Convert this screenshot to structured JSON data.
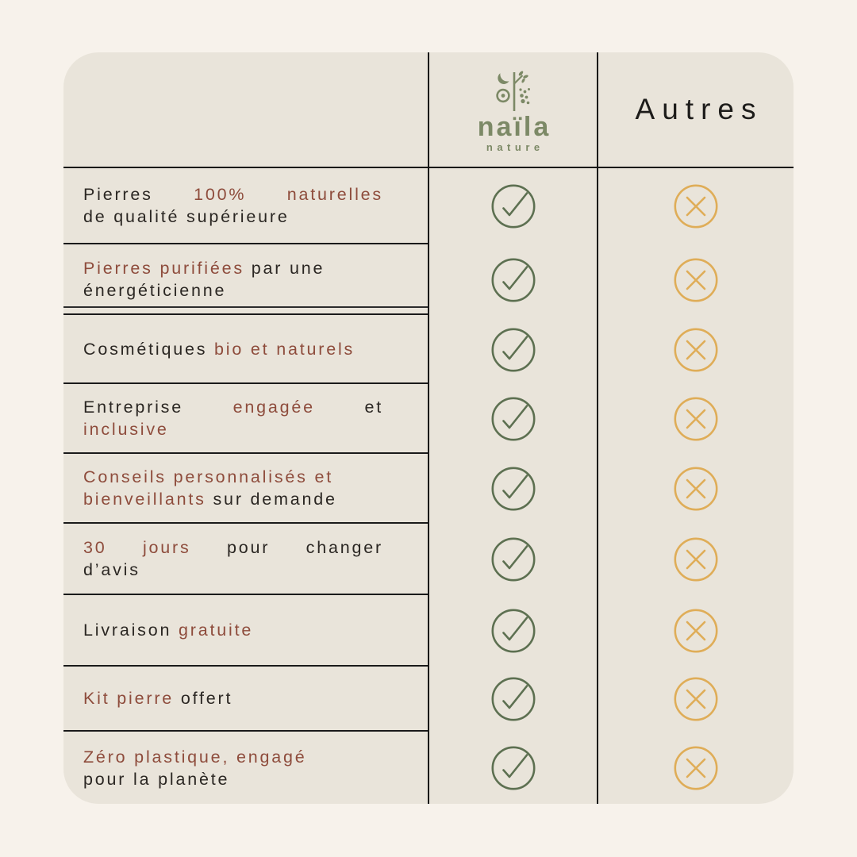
{
  "colors": {
    "page_background": "#f7f2eb",
    "card_background": "#e9e4da",
    "accent_maroon": "#8e4c3c",
    "text_dark": "#2b2723",
    "check_green": "#5d7051",
    "cross_gold": "#dfad58",
    "brand_olive": "#7c8966",
    "line_dark": "#161616"
  },
  "header": {
    "brand_name": "naïla",
    "brand_subtitle": "nature",
    "brand_logo_icon": "moon-plant-dots-icon",
    "others_label": "Autres"
  },
  "table": {
    "rows": [
      {
        "naila_value": "check",
        "others_value": "cross",
        "lines": [
          {
            "justify": true,
            "segments": [
              {
                "text": "Pierres",
                "color": "dark"
              },
              {
                "text": "100%",
                "color": "accent"
              },
              {
                "text": "naturelles",
                "color": "accent"
              }
            ]
          },
          {
            "justify": false,
            "segments": [
              {
                "text": "de qualité supérieure",
                "color": "dark"
              }
            ]
          }
        ]
      },
      {
        "naila_value": "check",
        "others_value": "cross",
        "lines": [
          {
            "justify": false,
            "segments": [
              {
                "text": "Pierres purifiées",
                "color": "accent"
              },
              {
                "text": " par une",
                "color": "dark"
              }
            ]
          },
          {
            "justify": false,
            "segments": [
              {
                "text": "énergéticienne",
                "color": "dark"
              }
            ]
          }
        ]
      },
      {
        "naila_value": "check",
        "others_value": "cross",
        "lines": [
          {
            "justify": false,
            "segments": [
              {
                "text": "Cosmétiques ",
                "color": "dark"
              },
              {
                "text": "bio et naturels",
                "color": "accent"
              }
            ]
          }
        ]
      },
      {
        "naila_value": "check",
        "others_value": "cross",
        "lines": [
          {
            "justify": true,
            "segments": [
              {
                "text": "Entreprise",
                "color": "dark"
              },
              {
                "text": "engagée",
                "color": "accent"
              },
              {
                "text": "et",
                "color": "dark"
              }
            ]
          },
          {
            "justify": false,
            "segments": [
              {
                "text": "inclusive",
                "color": "accent"
              }
            ]
          }
        ]
      },
      {
        "naila_value": "check",
        "others_value": "cross",
        "lines": [
          {
            "justify": false,
            "segments": [
              {
                "text": "Conseils personnalisés et",
                "color": "accent"
              }
            ]
          },
          {
            "justify": false,
            "segments": [
              {
                "text": "bienveillants",
                "color": "accent"
              },
              {
                "text": " sur demande",
                "color": "dark"
              }
            ]
          }
        ]
      },
      {
        "naila_value": "check",
        "others_value": "cross",
        "lines": [
          {
            "justify": true,
            "segments": [
              {
                "text": "30",
                "color": "accent"
              },
              {
                "text": "jours",
                "color": "accent"
              },
              {
                "text": "pour",
                "color": "dark"
              },
              {
                "text": "changer",
                "color": "dark"
              }
            ]
          },
          {
            "justify": false,
            "segments": [
              {
                "text": "d’avis",
                "color": "dark"
              }
            ]
          }
        ]
      },
      {
        "naila_value": "check",
        "others_value": "cross",
        "lines": [
          {
            "justify": false,
            "segments": [
              {
                "text": "Livraison ",
                "color": "dark"
              },
              {
                "text": "gratuite",
                "color": "accent"
              }
            ]
          }
        ]
      },
      {
        "naila_value": "check",
        "others_value": "cross",
        "lines": [
          {
            "justify": false,
            "segments": [
              {
                "text": "Kit pierre ",
                "color": "accent"
              },
              {
                "text": "offert",
                "color": "dark"
              }
            ]
          }
        ]
      },
      {
        "naila_value": "check",
        "others_value": "cross",
        "lines": [
          {
            "justify": false,
            "segments": [
              {
                "text": "Zéro plastique, engagé",
                "color": "accent"
              }
            ]
          },
          {
            "justify": false,
            "segments": [
              {
                "text": "pour la planète",
                "color": "dark"
              }
            ]
          }
        ]
      }
    ]
  }
}
